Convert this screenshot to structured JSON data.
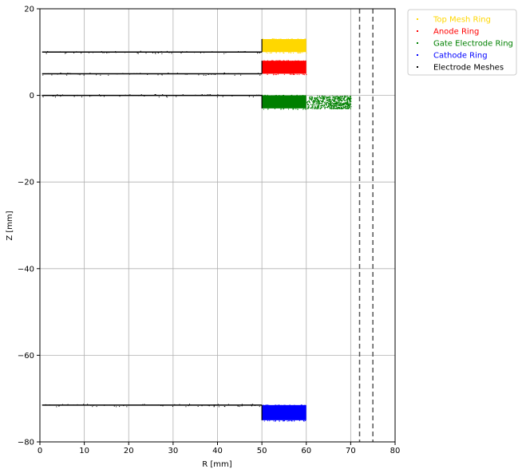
{
  "chart_data": {
    "type": "scatter",
    "xlabel": "R [mm]",
    "ylabel": "Z [mm]",
    "xlim": [
      0,
      80
    ],
    "ylim": [
      -80,
      20
    ],
    "xticks": [
      0,
      10,
      20,
      30,
      40,
      50,
      60,
      70,
      80
    ],
    "yticks": [
      -80,
      -60,
      -40,
      -20,
      0,
      20
    ],
    "grid": true,
    "legend_position": "outside-top-right",
    "series": [
      {
        "name": "Top Mesh Ring",
        "color": "#ffd700",
        "marker": "dot",
        "region": {
          "r": [
            50,
            60
          ],
          "z": [
            10,
            13
          ]
        }
      },
      {
        "name": "Anode Ring",
        "color": "#ff0000",
        "marker": "dot",
        "region": {
          "r": [
            50,
            60
          ],
          "z": [
            5,
            8
          ]
        }
      },
      {
        "name": "Gate Electrode Ring",
        "color": "#008000",
        "marker": "dot",
        "region": {
          "r": [
            50,
            60
          ],
          "z": [
            -3,
            0
          ]
        },
        "sparse_region": {
          "r": [
            60,
            70
          ],
          "z": [
            -3,
            0
          ]
        }
      },
      {
        "name": "Cathode Ring",
        "color": "#0000ff",
        "marker": "dot",
        "region": {
          "r": [
            50,
            60
          ],
          "z": [
            -75,
            -71.5
          ]
        }
      },
      {
        "name": "Electrode Meshes",
        "color": "#000000",
        "marker": "dot",
        "lines": [
          {
            "z": 10,
            "r": [
              0.5,
              50
            ]
          },
          {
            "z": 5,
            "r": [
              0.5,
              50
            ]
          },
          {
            "z": 0,
            "r": [
              0.5,
              50
            ]
          },
          {
            "z": -71.5,
            "r": [
              0.5,
              50
            ]
          }
        ],
        "vertical_edges": [
          {
            "r": 50,
            "z": [
              10,
              13
            ]
          },
          {
            "r": 50,
            "z": [
              5,
              8
            ]
          },
          {
            "r": 50,
            "z": [
              -3,
              0
            ]
          },
          {
            "r": 50,
            "z": [
              -75,
              -71.5
            ]
          }
        ]
      }
    ],
    "reference_lines": [
      {
        "orientation": "vertical",
        "x": 72,
        "style": "dashed",
        "color": "#555555"
      },
      {
        "orientation": "vertical",
        "x": 75,
        "style": "dashed",
        "color": "#555555"
      }
    ]
  }
}
